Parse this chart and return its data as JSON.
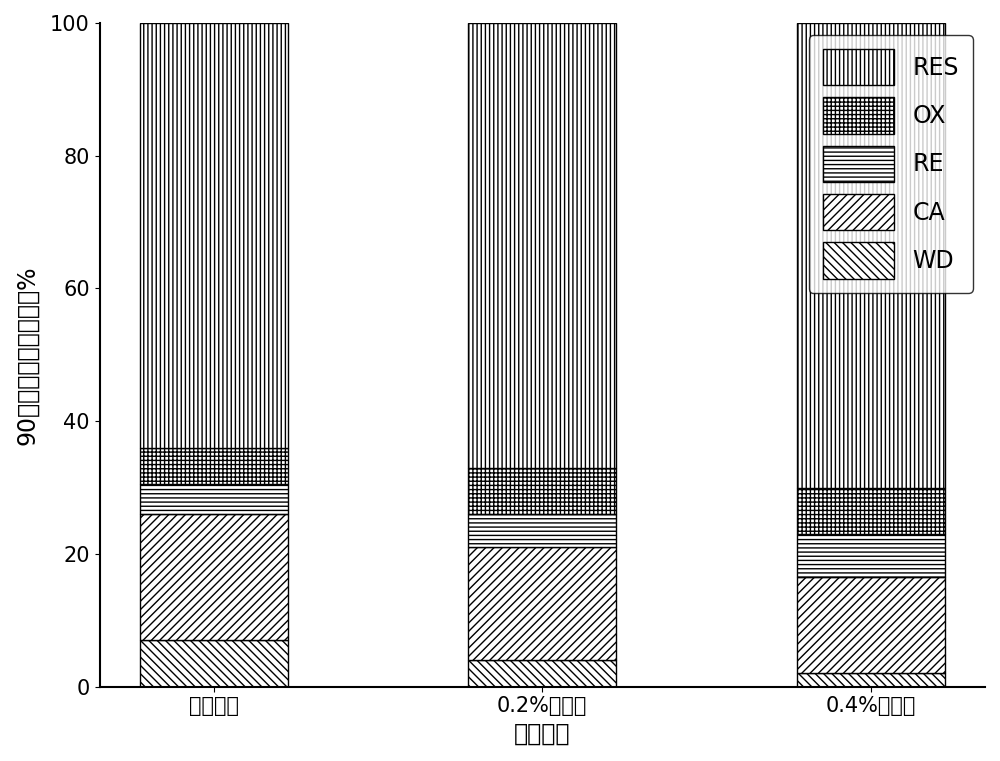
{
  "categories": [
    "空白对照",
    "0.2%添加量",
    "0.4%添加量"
  ],
  "series": {
    "WD": [
      7.0,
      4.0,
      2.0
    ],
    "CA": [
      19.0,
      17.0,
      14.5
    ],
    "RE": [
      4.5,
      5.0,
      6.5
    ],
    "OX": [
      5.5,
      7.0,
      7.0
    ],
    "RES": [
      64.0,
      67.0,
      70.0
    ]
  },
  "hatches": {
    "WD": "\\\\\\\\",
    "CA": "////",
    "RE": "----",
    "OX": "++++",
    "RES": "||||"
  },
  "ylabel": "90天各形态所占百分比%",
  "xlabel": "处理名称",
  "ylim": [
    0,
    100
  ],
  "bar_width": 0.45,
  "label_fontsize": 17,
  "tick_fontsize": 15,
  "legend_fontsize": 17
}
